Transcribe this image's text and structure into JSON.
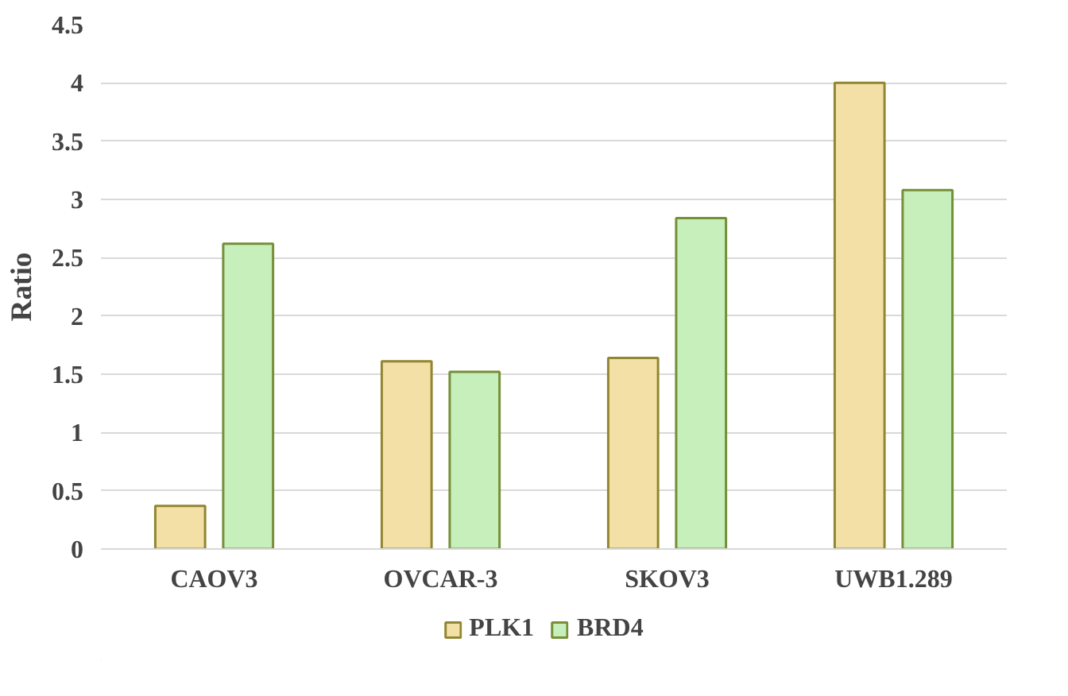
{
  "chart_data": {
    "type": "bar",
    "ylabel": "Ratio",
    "categories": [
      "CAOV3",
      "OVCAR-3",
      "SKOV3",
      "UWB1.289"
    ],
    "series": [
      {
        "name": "PLK1",
        "color": "#f3e0a6",
        "values": [
          0.37,
          1.61,
          1.64,
          4.0
        ]
      },
      {
        "name": "BRD4",
        "color": "#c6efbc",
        "values": [
          2.62,
          1.52,
          2.84,
          3.08
        ]
      }
    ],
    "ylim": [
      0,
      4.5
    ],
    "yticks": [
      0,
      0.5,
      1,
      1.5,
      2,
      2.5,
      3,
      3.5,
      4,
      4.5
    ],
    "grid": "y",
    "legend": "bottom"
  }
}
